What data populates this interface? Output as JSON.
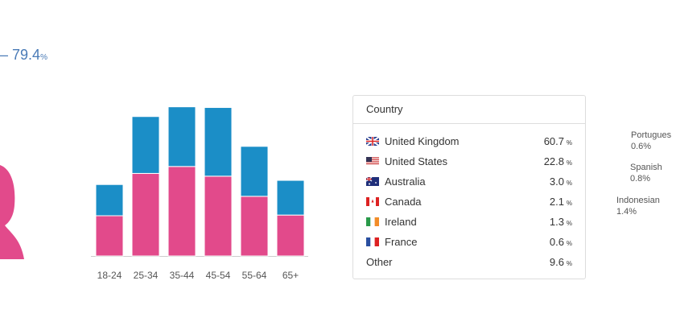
{
  "header": {
    "prefix": "–",
    "value": "79.4",
    "unit": "%"
  },
  "chart_data": {
    "type": "bar",
    "stacked": true,
    "categories": [
      "18-24",
      "25-34",
      "35-44",
      "45-54",
      "55-64",
      "65+"
    ],
    "series": [
      {
        "color": "#e24a8b",
        "values": [
          5.8,
          11.9,
          12.9,
          11.5,
          8.6,
          5.9
        ]
      },
      {
        "color": "#1b8ec7",
        "values": [
          4.5,
          8.2,
          8.6,
          9.9,
          7.2,
          5.0
        ]
      }
    ]
  },
  "country_table": {
    "title": "Country",
    "rows": [
      {
        "name": "United Kingdom",
        "value": "60.7",
        "unit": "%"
      },
      {
        "name": "United States",
        "value": "22.8",
        "unit": "%"
      },
      {
        "name": "Australia",
        "value": "3.0",
        "unit": "%"
      },
      {
        "name": "Canada",
        "value": "2.1",
        "unit": "%"
      },
      {
        "name": "Ireland",
        "value": "1.3",
        "unit": "%"
      },
      {
        "name": "France",
        "value": "0.6",
        "unit": "%"
      },
      {
        "name": "Other",
        "value": "9.6",
        "unit": "%"
      }
    ]
  },
  "languages": [
    {
      "name": "Portugues",
      "value": "0.6%"
    },
    {
      "name": "Spanish",
      "value": "0.8%"
    },
    {
      "name": "Indonesian",
      "value": "1.4%"
    }
  ]
}
